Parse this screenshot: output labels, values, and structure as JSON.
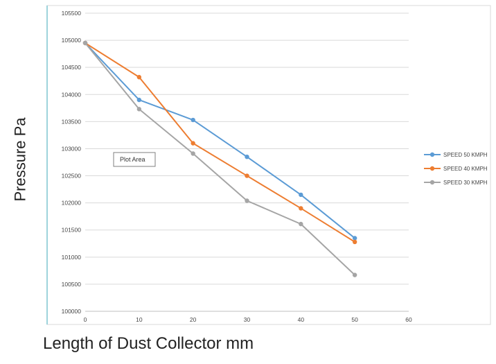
{
  "chart_data": {
    "type": "line",
    "xlabel": "Length of Dust Collector mm",
    "ylabel": "Pressure Pa",
    "x": [
      0,
      10,
      20,
      30,
      40,
      50
    ],
    "xlim": [
      0,
      60
    ],
    "ylim": [
      100000,
      105500
    ],
    "x_ticks": [
      "0",
      "10",
      "20",
      "30",
      "40",
      "50",
      "60"
    ],
    "y_ticks": [
      "100000",
      "100500",
      "101000",
      "101500",
      "102000",
      "102500",
      "103000",
      "103500",
      "104000",
      "104500",
      "105000",
      "105500"
    ],
    "grid": "horizontal",
    "legend_position": "right",
    "series": [
      {
        "name": "SPEED 50 KMPH",
        "color": "#5b9bd5",
        "values": [
          104950,
          103900,
          103530,
          102850,
          102150,
          101350
        ]
      },
      {
        "name": "SPEED 40 KMPH",
        "color": "#ed7d31",
        "values": [
          104950,
          104320,
          103100,
          102500,
          101900,
          101280
        ]
      },
      {
        "name": "SPEED 30 KMPH",
        "color": "#a5a5a5",
        "values": [
          104950,
          103730,
          102910,
          102040,
          101610,
          100670
        ]
      }
    ],
    "annotation": "Plot Area"
  }
}
